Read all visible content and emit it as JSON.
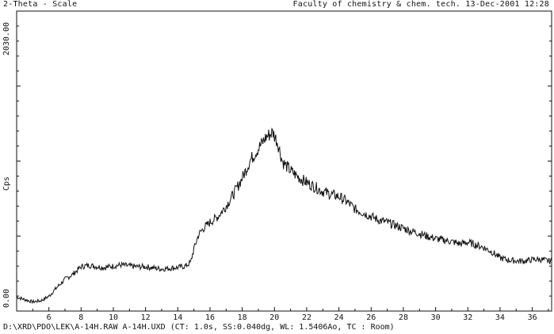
{
  "header": {
    "left": "2-Theta - Scale",
    "right": "Faculty of chemistry & chem. tech. 13-Dec-2001 12:28"
  },
  "footer": {
    "text": "D:\\XRD\\PDO\\LEK\\A-14H.RAW A-14H.UXD (CT:   1.0s, SS:0.040dg, WL:  1.5406Ao, TC : Room)"
  },
  "chart_data": {
    "type": "line",
    "title": "",
    "xlabel": "",
    "ylabel": "Cps",
    "xlim": [
      4.0,
      37.2
    ],
    "ylim": [
      0.0,
      2030.0
    ],
    "x_ticks": [
      6,
      8,
      10,
      12,
      14,
      16,
      18,
      20,
      22,
      24,
      26,
      28,
      30,
      32,
      34,
      36
    ],
    "y_tick_labels": [
      "0.00",
      "2030.00"
    ],
    "grid": false,
    "line_color": "#111111",
    "series": [
      {
        "x": [
          4.0,
          4.5,
          5.0,
          5.5,
          6.0,
          6.5,
          7.0,
          7.5,
          8.0,
          8.5,
          9.0,
          9.5,
          10.0,
          10.5,
          11.0,
          11.5,
          12.0,
          12.5,
          13.0,
          13.5,
          14.0,
          14.5,
          14.8,
          15.0,
          15.3,
          15.6,
          16.0,
          16.5,
          17.0,
          17.5,
          18.0,
          18.5,
          19.0,
          19.5,
          19.9,
          20.2,
          20.5,
          21.0,
          21.5,
          22.0,
          22.5,
          23.0,
          23.5,
          24.0,
          24.5,
          25.0,
          25.5,
          26.0,
          26.5,
          27.0,
          27.5,
          28.0,
          28.5,
          29.0,
          29.5,
          30.0,
          30.5,
          31.0,
          31.5,
          32.0,
          32.5,
          33.0,
          33.5,
          34.0,
          34.5,
          35.0,
          35.5,
          36.0,
          36.5,
          37.2
        ],
        "y": [
          95,
          78,
          62,
          70,
          100,
          160,
          215,
          250,
          300,
          310,
          300,
          295,
          305,
          312,
          305,
          300,
          300,
          292,
          285,
          290,
          295,
          305,
          330,
          420,
          520,
          560,
          600,
          640,
          710,
          800,
          900,
          1020,
          1100,
          1180,
          1210,
          1140,
          1010,
          950,
          905,
          870,
          840,
          810,
          790,
          775,
          740,
          690,
          665,
          640,
          615,
          600,
          580,
          560,
          540,
          525,
          505,
          490,
          480,
          470,
          455,
          465,
          448,
          430,
          400,
          360,
          345,
          340,
          338,
          348,
          350,
          335
        ]
      }
    ]
  }
}
